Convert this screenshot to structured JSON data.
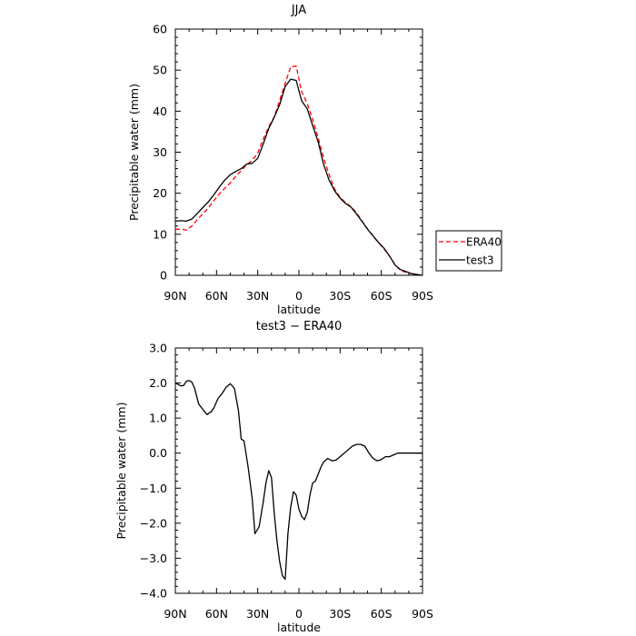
{
  "chart_data": [
    {
      "type": "line",
      "title": "JJA",
      "xlabel": "latitude",
      "ylabel": "Precipitable water (mm)",
      "xlim": [
        90,
        -90
      ],
      "ylim": [
        0,
        60
      ],
      "x_ticks": [
        90,
        60,
        30,
        0,
        -30,
        -60,
        -90
      ],
      "x_ticklabels": [
        "90N",
        "60N",
        "30N",
        "0",
        "30S",
        "60S",
        "90S"
      ],
      "y_ticks": [
        0,
        10,
        20,
        30,
        40,
        50,
        60
      ],
      "y_ticklabels": [
        "0",
        "10",
        "20",
        "30",
        "40",
        "50",
        "60"
      ],
      "grid": false,
      "legend_position": "outside-right",
      "series": [
        {
          "name": "ERA40",
          "color": "#ff0000",
          "style": "dashed",
          "x": [
            90,
            86,
            82,
            78,
            74,
            70,
            66,
            62,
            58,
            54,
            50,
            46,
            42,
            38,
            34,
            30,
            26,
            22,
            18,
            14,
            10,
            6,
            2,
            -2,
            -6,
            -10,
            -14,
            -18,
            -22,
            -26,
            -30,
            -34,
            -38,
            -42,
            -46,
            -50,
            -54,
            -58,
            -62,
            -66,
            -70,
            -74,
            -78,
            -82,
            -86,
            -90
          ],
          "values": [
            11.2,
            11.3,
            11.0,
            12.0,
            13.6,
            15.0,
            16.4,
            18.2,
            19.8,
            21.2,
            22.5,
            24.1,
            25.5,
            27.0,
            28.0,
            29.8,
            33.2,
            36.2,
            38.6,
            42.6,
            46.8,
            50.8,
            51.0,
            44.7,
            41.9,
            38.0,
            33.5,
            28.6,
            24.5,
            21.0,
            19.0,
            17.7,
            16.7,
            15.2,
            13.2,
            11.3,
            9.5,
            8.0,
            6.4,
            4.7,
            2.6,
            1.2,
            0.7,
            0.4,
            0.2,
            0.0
          ]
        },
        {
          "name": "test3",
          "color": "#000000",
          "style": "solid",
          "x": [
            90,
            86,
            82,
            78,
            74,
            70,
            66,
            62,
            58,
            54,
            50,
            46,
            42,
            38,
            34,
            30,
            26,
            22,
            18,
            14,
            10,
            6,
            2,
            -2,
            -6,
            -10,
            -14,
            -18,
            -22,
            -26,
            -30,
            -34,
            -38,
            -42,
            -46,
            -50,
            -54,
            -58,
            -62,
            -66,
            -70,
            -74,
            -78,
            -82,
            -86,
            -90
          ],
          "values": [
            13.2,
            13.3,
            13.2,
            13.7,
            15.1,
            16.5,
            17.9,
            19.6,
            21.5,
            23.2,
            24.5,
            25.3,
            26.0,
            27.1,
            27.3,
            28.5,
            32.0,
            35.8,
            38.5,
            41.6,
            46.0,
            47.8,
            47.5,
            42.5,
            40.6,
            36.5,
            32.5,
            27.0,
            23.2,
            20.6,
            18.8,
            17.5,
            16.6,
            14.9,
            13.1,
            11.2,
            9.6,
            8.0,
            6.6,
            4.7,
            2.5,
            1.4,
            0.9,
            0.4,
            0.2,
            0.0
          ]
        }
      ]
    },
    {
      "type": "line",
      "title": "test3 − ERA40",
      "xlabel": "latitude",
      "ylabel": "Precipitable water (mm)",
      "xlim": [
        90,
        -90
      ],
      "ylim": [
        -4.0,
        3.0
      ],
      "x_ticks": [
        90,
        60,
        30,
        0,
        -30,
        -60,
        -90
      ],
      "x_ticklabels": [
        "90N",
        "60N",
        "30N",
        "0",
        "30S",
        "60S",
        "90S"
      ],
      "y_ticks": [
        -4,
        -3,
        -2,
        -1,
        0,
        1,
        2,
        3
      ],
      "y_ticklabels": [
        "−4.0",
        "−3.0",
        "−2.0",
        "−1.0",
        "0.0",
        "1.0",
        "2.0",
        "3.0"
      ],
      "grid": false,
      "series": [
        {
          "color": "#000000",
          "style": "solid",
          "x": [
            90,
            86,
            84,
            82,
            80,
            78,
            76,
            73,
            70,
            67,
            64,
            62,
            59,
            56,
            53,
            50,
            47,
            44,
            42,
            40,
            37,
            34,
            32,
            29,
            26,
            24,
            22,
            20,
            18,
            16,
            14,
            12,
            10,
            8,
            6,
            4,
            2,
            0,
            -2,
            -4,
            -6,
            -8,
            -10,
            -12,
            -14,
            -16,
            -18,
            -21,
            -24,
            -27,
            -30,
            -33,
            -36,
            -39,
            -42,
            -45,
            -48,
            -51,
            -54,
            -57,
            -60,
            -63,
            -66,
            -69,
            -72,
            -75,
            -78,
            -81,
            -84,
            -87,
            -90
          ],
          "values": [
            2.0,
            1.92,
            1.93,
            2.05,
            2.07,
            2.03,
            1.85,
            1.4,
            1.25,
            1.1,
            1.18,
            1.28,
            1.55,
            1.7,
            1.88,
            1.98,
            1.85,
            1.2,
            0.4,
            0.35,
            -0.4,
            -1.3,
            -2.3,
            -2.1,
            -1.4,
            -0.85,
            -0.5,
            -0.7,
            -1.7,
            -2.5,
            -3.1,
            -3.5,
            -3.6,
            -2.3,
            -1.55,
            -1.1,
            -1.2,
            -1.6,
            -1.8,
            -1.9,
            -1.7,
            -1.2,
            -0.85,
            -0.8,
            -0.6,
            -0.4,
            -0.25,
            -0.15,
            -0.22,
            -0.2,
            -0.1,
            0.0,
            0.1,
            0.2,
            0.25,
            0.25,
            0.2,
            0.0,
            -0.15,
            -0.22,
            -0.18,
            -0.1,
            -0.1,
            -0.05,
            0.0,
            0.0,
            0.0,
            0.0,
            0.0,
            0.0,
            0.0
          ]
        }
      ]
    }
  ]
}
